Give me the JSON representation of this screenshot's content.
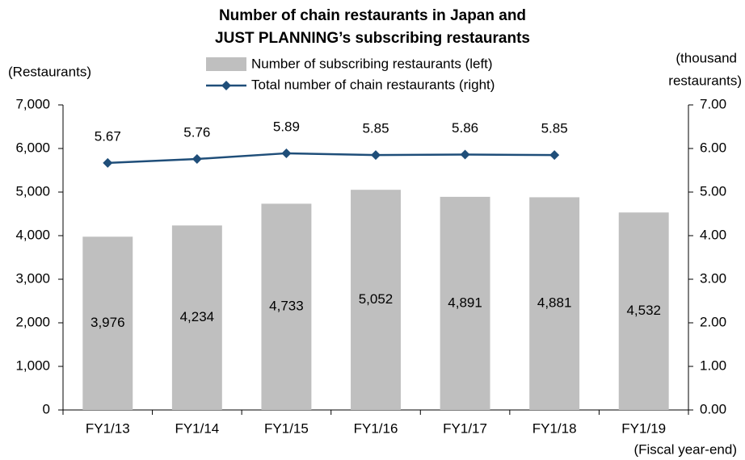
{
  "chart_data": {
    "type": "bar_line",
    "title": [
      "Number of chain restaurants in Japan and",
      "JUST PLANNING’s subscribing restaurants"
    ],
    "y_label": "(Restaurants)",
    "y2_label": [
      "(thousand",
      "restaurants)"
    ],
    "x_label": "(Fiscal year-end)",
    "categories": [
      "FY1/13",
      "FY1/14",
      "FY1/15",
      "FY1/16",
      "FY1/17",
      "FY1/18",
      "FY1/19"
    ],
    "series": [
      {
        "name": "Number of subscribing restaurants (left)",
        "type": "bar",
        "color": "#bfbfbf",
        "values": [
          3976,
          4234,
          4733,
          5052,
          4891,
          4881,
          4532
        ],
        "value_labels": [
          "3,976",
          "4,234",
          "4,733",
          "5,052",
          "4,891",
          "4,881",
          "4,532"
        ]
      },
      {
        "name": "Total number of chain restaurants (right)",
        "type": "line",
        "axis": "y2",
        "color": "#1f4e79",
        "values": [
          5.67,
          5.76,
          5.89,
          5.85,
          5.86,
          5.85,
          null
        ]
      }
    ],
    "ylim": [
      0,
      7000
    ],
    "yticks": [
      0,
      {
        "value": 1000,
        "label": "1,000"
      },
      {
        "value": 2000,
        "label": "2,000"
      },
      {
        "value": 3000,
        "label": "3,000"
      },
      {
        "value": 4000,
        "label": "4,000"
      },
      {
        "value": 5000,
        "label": "5,000"
      },
      {
        "value": 6000,
        "label": "6,000"
      },
      {
        "value": 7000,
        "label": "7,000"
      }
    ],
    "y2lim": [
      0,
      7
    ],
    "y2ticks": [
      {
        "value": 0,
        "label": "0.00"
      },
      {
        "value": 1,
        "label": "1.00"
      },
      {
        "value": 2,
        "label": "2.00"
      },
      {
        "value": 3,
        "label": "3.00"
      },
      {
        "value": 4,
        "label": "4.00"
      },
      {
        "value": 5,
        "label": "5.00"
      },
      {
        "value": 6,
        "label": "6.00"
      },
      {
        "value": 7,
        "label": "7.00"
      }
    ],
    "grid": false,
    "legend": "top"
  }
}
